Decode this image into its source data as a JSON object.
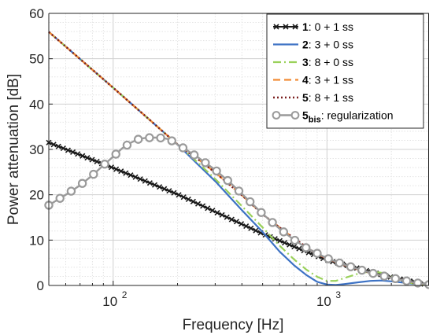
{
  "chart_data": {
    "type": "line",
    "xlabel": "Frequency [Hz]",
    "ylabel": "Power attenuation [dB]",
    "xscale": "log",
    "xlim": [
      50,
      3000
    ],
    "ylim": [
      0,
      60
    ],
    "x_ticks": [
      {
        "value": 100,
        "base": "10",
        "exp": "2"
      },
      {
        "value": 1000,
        "base": "10",
        "exp": "3"
      }
    ],
    "y_ticks": [
      0,
      10,
      20,
      30,
      40,
      50,
      60
    ],
    "grid": true,
    "legend_position": "top-right",
    "legend": [
      {
        "key": "s1",
        "num": "1",
        "sub": "",
        "text": ": 0 + 1 ss"
      },
      {
        "key": "s2",
        "num": "2",
        "sub": "",
        "text": ": 3 + 0 ss"
      },
      {
        "key": "s3",
        "num": "3",
        "sub": "",
        "text": ": 8 + 0 ss"
      },
      {
        "key": "s4",
        "num": "4",
        "sub": "",
        "text": ": 3 + 1 ss"
      },
      {
        "key": "s5",
        "num": "5",
        "sub": "",
        "text": ": 8 + 1 ss"
      },
      {
        "key": "s6",
        "num": "5",
        "sub": "bis",
        "text": ": regularization"
      }
    ],
    "series": [
      {
        "key": "s1",
        "color": "#1a1a1a",
        "style": "solid",
        "width": 2,
        "marker": "x",
        "marker_count": 80,
        "x": [
          50,
          100,
          200,
          500,
          1000,
          2000,
          3000
        ],
        "y": [
          31.5,
          25.9,
          20.1,
          11.4,
          5.6,
          1.8,
          0.1
        ]
      },
      {
        "key": "s2",
        "color": "#3d72c4",
        "style": "solid",
        "width": 2.2,
        "x": [
          50,
          100,
          150,
          200,
          250,
          300,
          400,
          500,
          600,
          700,
          800,
          900,
          1000,
          1100,
          1200,
          1400,
          1600,
          1800,
          2000,
          2300,
          2600,
          3000
        ],
        "y": [
          55.9,
          43.6,
          36.3,
          31.1,
          26.6,
          23.0,
          16.6,
          11.8,
          7.5,
          4.5,
          2.3,
          0.8,
          0.2,
          0.1,
          0.3,
          0.7,
          1.0,
          1.1,
          0.9,
          0.6,
          0.3,
          0.1
        ]
      },
      {
        "key": "s3",
        "color": "#9ad15a",
        "style": "dashdot",
        "width": 2.2,
        "x": [
          50,
          100,
          150,
          200,
          250,
          300,
          400,
          500,
          600,
          700,
          800,
          900,
          1000,
          1100,
          1200,
          1400,
          1600,
          1800,
          2000,
          2300,
          2600,
          3000
        ],
        "y": [
          55.9,
          43.6,
          36.3,
          31.1,
          27.0,
          23.5,
          17.5,
          12.8,
          8.8,
          5.8,
          3.5,
          1.9,
          1.0,
          1.0,
          1.6,
          2.6,
          3.1,
          2.8,
          2.0,
          0.9,
          0.3,
          0.1
        ]
      },
      {
        "key": "s4",
        "color": "#f28c36",
        "style": "dashed",
        "width": 2.2,
        "x": [
          50,
          100,
          150,
          200,
          250,
          300,
          400,
          500,
          600,
          700,
          800,
          900,
          1000,
          1200,
          1400,
          1600,
          1800,
          2000,
          2300,
          2600,
          3000
        ],
        "y": [
          55.9,
          43.6,
          36.3,
          31.1,
          27.8,
          24.9,
          19.9,
          15.7,
          12.8,
          10.4,
          8.5,
          6.9,
          5.9,
          4.5,
          3.5,
          2.8,
          2.2,
          1.7,
          1.1,
          0.5,
          0.1
        ]
      },
      {
        "key": "s5",
        "color": "#7a1f1f",
        "style": "dotted",
        "width": 2.6,
        "x": [
          50,
          100,
          150,
          200,
          250,
          300,
          400,
          500,
          600,
          700,
          800,
          900,
          1000,
          1200,
          1400,
          1600,
          1800,
          2000,
          2300,
          2600,
          3000
        ],
        "y": [
          55.9,
          43.6,
          36.3,
          31.1,
          27.8,
          24.9,
          19.9,
          15.7,
          12.8,
          10.4,
          8.5,
          6.9,
          5.9,
          4.5,
          3.5,
          2.8,
          2.2,
          1.7,
          1.1,
          0.5,
          0.1
        ]
      },
      {
        "key": "s6",
        "color": "#9a9a9a",
        "style": "solid",
        "width": 2.4,
        "marker": "o",
        "marker_count": 35,
        "x": [
          50,
          60,
          70,
          80,
          90,
          100,
          110,
          120,
          130,
          140,
          150,
          160,
          170,
          180,
          190,
          200,
          225,
          250,
          300,
          350,
          400,
          500,
          600,
          700,
          800,
          1000,
          1200,
          1400,
          1600,
          1800,
          2000,
          2300,
          2600,
          3000
        ],
        "y": [
          17.7,
          20.0,
          22.1,
          24.3,
          26.5,
          28.4,
          30.2,
          31.4,
          32.2,
          32.5,
          32.6,
          32.6,
          32.5,
          32.3,
          31.8,
          31.1,
          29.6,
          28.2,
          25.5,
          22.8,
          20.2,
          15.8,
          12.5,
          10.1,
          8.3,
          6.0,
          4.6,
          3.6,
          2.8,
          2.2,
          1.7,
          1.1,
          0.6,
          0.2
        ]
      }
    ]
  }
}
